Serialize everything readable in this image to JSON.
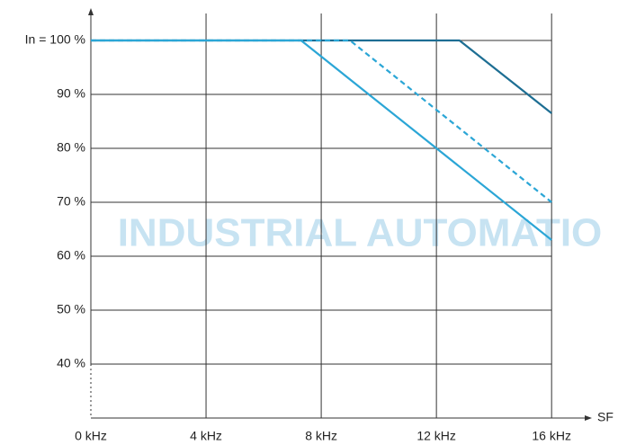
{
  "chart_data": {
    "type": "line",
    "x_label": "SF",
    "annotation": "INDUSTRIAL AUTOMATIO",
    "xlim": [
      0,
      17.4
    ],
    "xticks": [
      {
        "value": 0,
        "label": "0 kHz"
      },
      {
        "value": 4,
        "label": "4 kHz"
      },
      {
        "value": 8,
        "label": "8 kHz"
      },
      {
        "value": 12,
        "label": "12 kHz"
      },
      {
        "value": 16,
        "label": "16 kHz"
      }
    ],
    "ylim": [
      30,
      106
    ],
    "yticks": [
      {
        "value": 40,
        "label": "40 %"
      },
      {
        "value": 50,
        "label": "50 %"
      },
      {
        "value": 60,
        "label": "60 %"
      },
      {
        "value": 70,
        "label": "70 %"
      },
      {
        "value": 80,
        "label": "80 %"
      },
      {
        "value": 90,
        "label": "90 %"
      },
      {
        "value": 100,
        "label": "In = 100 %"
      }
    ],
    "grid": true,
    "series": [
      {
        "color": "#1d6e93",
        "dashed": false,
        "x": [
          0,
          12.8,
          16
        ],
        "values": [
          100,
          100,
          86.5
        ]
      },
      {
        "color": "#2ba6d6",
        "dashed": true,
        "x": [
          0,
          9,
          16
        ],
        "values": [
          100,
          100,
          70
        ]
      },
      {
        "color": "#2ba6d6",
        "dashed": false,
        "x": [
          0,
          7.3,
          16
        ],
        "values": [
          100,
          100,
          63
        ]
      }
    ]
  }
}
